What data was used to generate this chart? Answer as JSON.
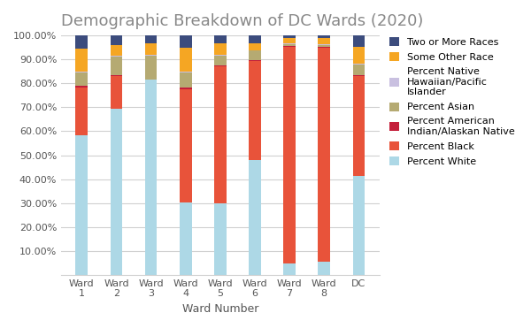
{
  "categories": [
    "Ward\n1",
    "Ward\n2",
    "Ward\n3",
    "Ward\n4",
    "Ward\n5",
    "Ward\n6",
    "Ward\n7",
    "Ward\n8",
    "DC"
  ],
  "title": "Demographic Breakdown of DC Wards (2020)",
  "xlabel": "Ward Number",
  "series": [
    {
      "label": "Percent White",
      "color": "#ADD8E6",
      "values": [
        0.585,
        0.694,
        0.814,
        0.304,
        0.3,
        0.48,
        0.047,
        0.057,
        0.415
      ]
    },
    {
      "label": "Percent Black",
      "color": "#E8533A",
      "values": [
        0.197,
        0.135,
        0.0,
        0.472,
        0.572,
        0.413,
        0.905,
        0.893,
        0.416
      ]
    },
    {
      "label": "Percent American\nIndian/Alaskan Native",
      "color": "#C41E3A",
      "values": [
        0.008,
        0.004,
        0.003,
        0.005,
        0.004,
        0.004,
        0.004,
        0.003,
        0.004
      ]
    },
    {
      "label": "Percent Asian",
      "color": "#B5AA72",
      "values": [
        0.055,
        0.08,
        0.1,
        0.065,
        0.04,
        0.04,
        0.008,
        0.008,
        0.045
      ]
    },
    {
      "label": "Percent Native\nHawaiian/Pacific\nIslander",
      "color": "#C9C0E0",
      "values": [
        0.003,
        0.003,
        0.003,
        0.002,
        0.002,
        0.002,
        0.002,
        0.002,
        0.002
      ]
    },
    {
      "label": "Some Other Race",
      "color": "#F5A623",
      "values": [
        0.097,
        0.043,
        0.047,
        0.1,
        0.048,
        0.03,
        0.022,
        0.025,
        0.072
      ]
    },
    {
      "label": "Two or More Races",
      "color": "#3C4C7D",
      "values": [
        0.055,
        0.041,
        0.033,
        0.052,
        0.034,
        0.031,
        0.012,
        0.012,
        0.046
      ]
    }
  ],
  "legend_labels": [
    "Two or More Races",
    "Some Other Race",
    "Percent Native\nHawaiian/Pacific\nIslander",
    "Percent Asian",
    "Percent American\nIndian/Alaskan Native",
    "Percent Black",
    "Percent White"
  ],
  "yticks": [
    0.1,
    0.2,
    0.3,
    0.4,
    0.5,
    0.6,
    0.7,
    0.8,
    0.9,
    1.0
  ],
  "title_fontsize": 13,
  "bar_width": 0.35,
  "figsize": [
    6.0,
    3.71
  ],
  "dpi": 100
}
